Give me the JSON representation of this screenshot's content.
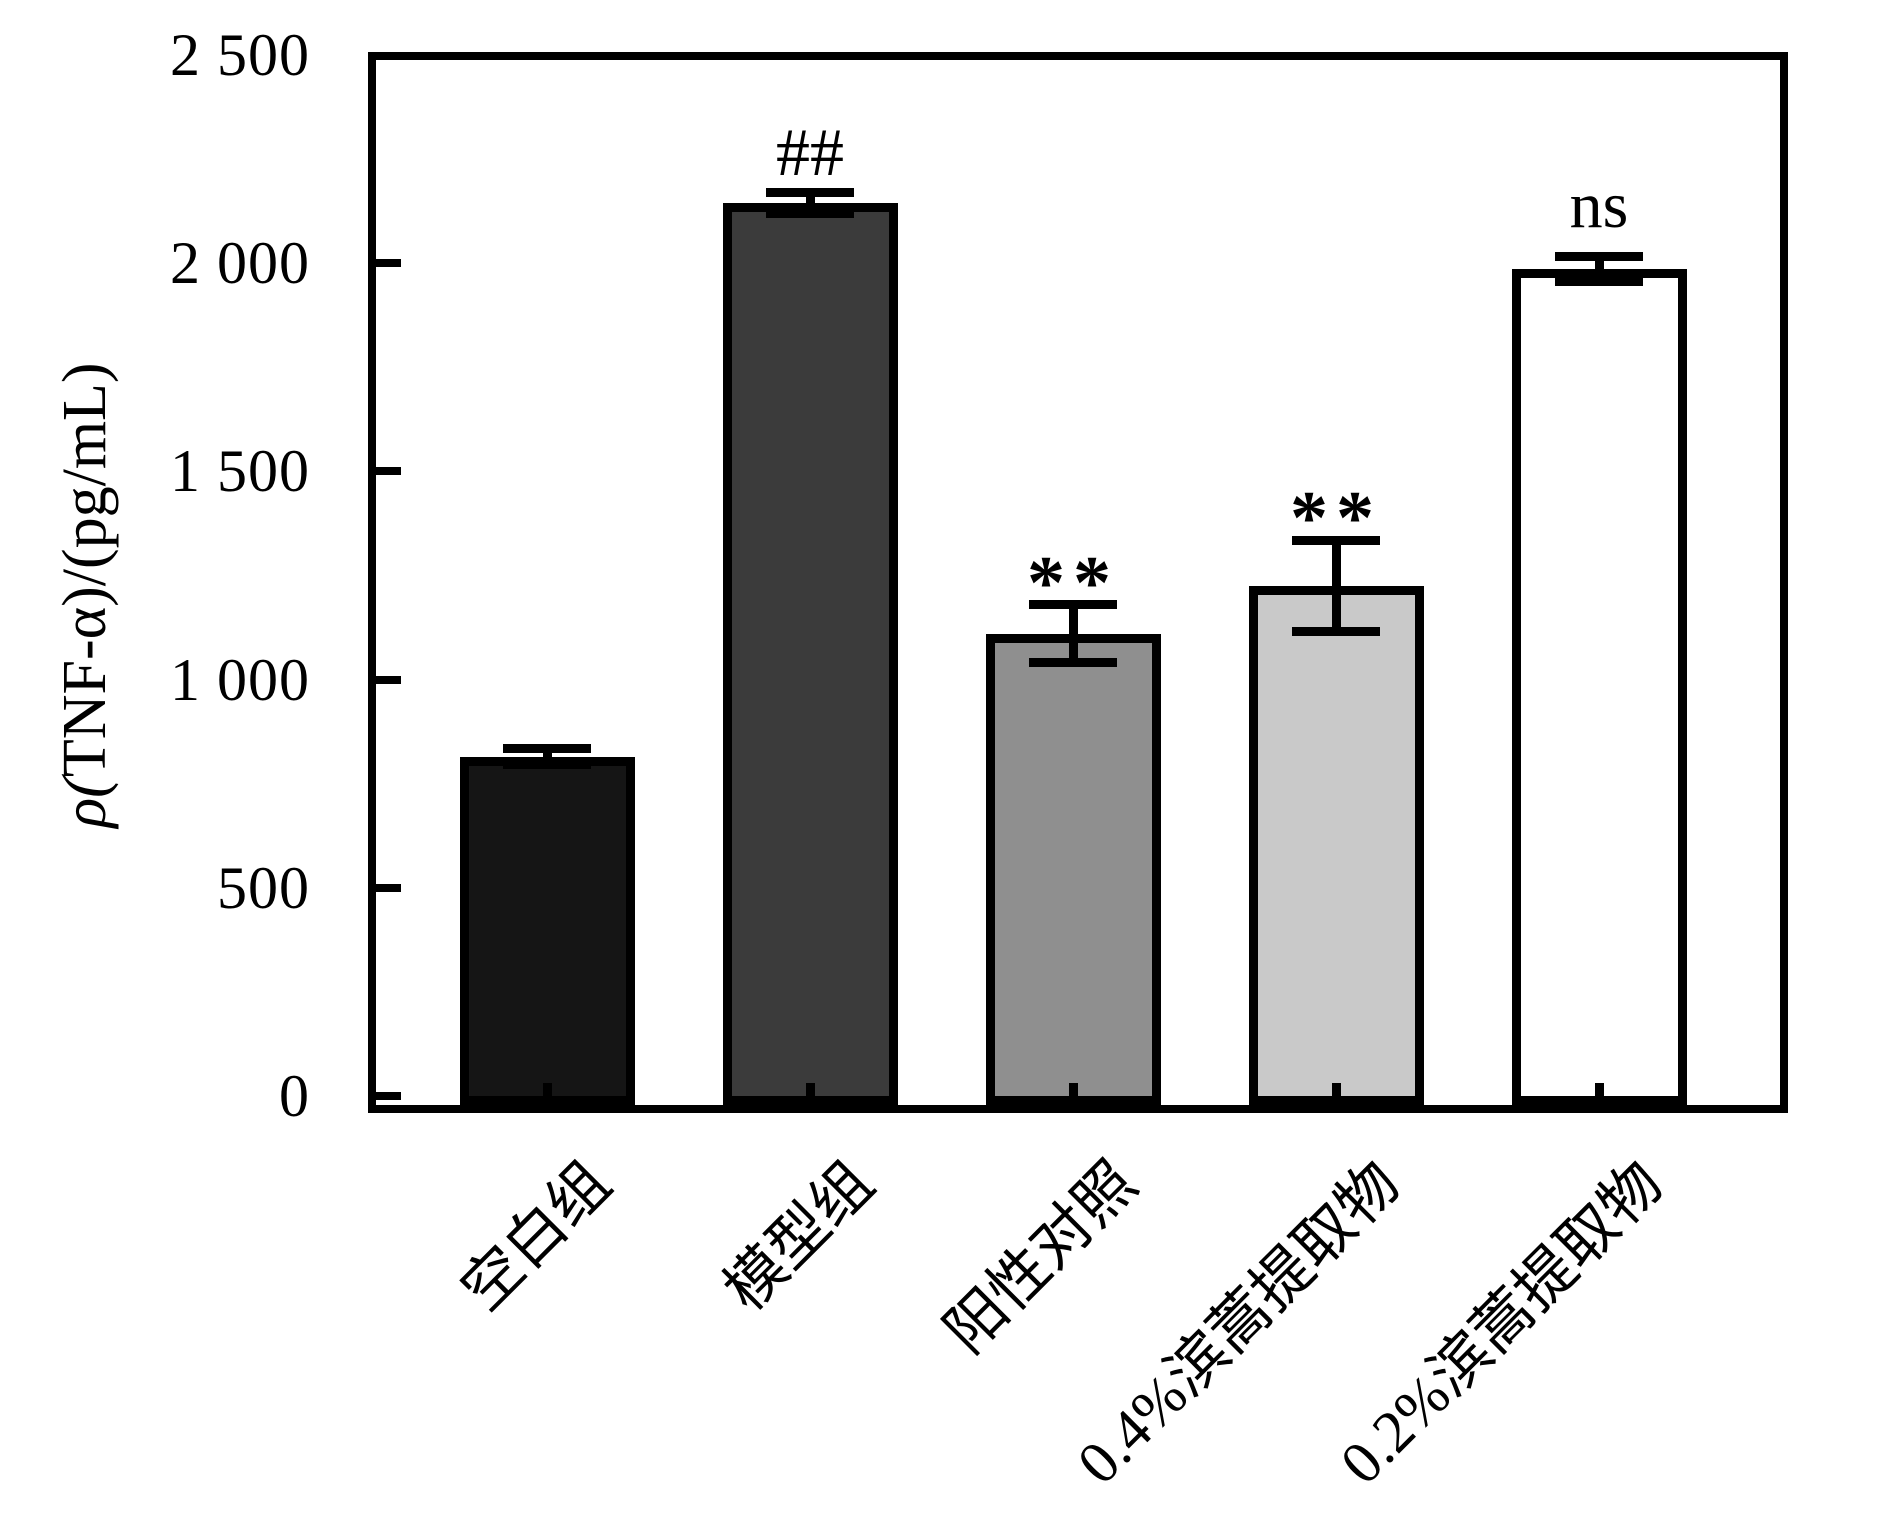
{
  "figure": {
    "background": "#ffffff",
    "axis_color": "#000000"
  },
  "chart_data": {
    "type": "bar",
    "title": "",
    "xlabel": "",
    "ylabel": "ρ(TNF-α)/(pg/mL)",
    "ylim": [
      -45,
      2500
    ],
    "grid": false,
    "legend": "none",
    "ytick_values": [
      0,
      500,
      1000,
      1500,
      2000,
      2500
    ],
    "ytick_labels": [
      "0",
      "500",
      "1 000",
      "1 500",
      "2 000",
      "2 500"
    ],
    "categories": [
      "空白组",
      "模型组",
      "阳性对照",
      "0.4%滨蒿提取物",
      "0.2%滨蒿提取物"
    ],
    "bars": [
      {
        "label": "空白组",
        "value": 815,
        "error": 20,
        "fill": "#151515",
        "annotation": ""
      },
      {
        "label": "模型组",
        "value": 2145,
        "error": 25,
        "fill": "#3b3b3b",
        "annotation": "##"
      },
      {
        "label": "阳性对照",
        "value": 1110,
        "error": 70,
        "fill": "#8f8f8f",
        "annotation": "**"
      },
      {
        "label": "0.4%滨蒿提取物",
        "value": 1225,
        "error": 110,
        "fill": "#c9c9c9",
        "annotation": "**"
      },
      {
        "label": "0.2%滨蒿提取物",
        "value": 1985,
        "error": 30,
        "fill": "#ffffff",
        "annotation": "ns"
      }
    ]
  }
}
